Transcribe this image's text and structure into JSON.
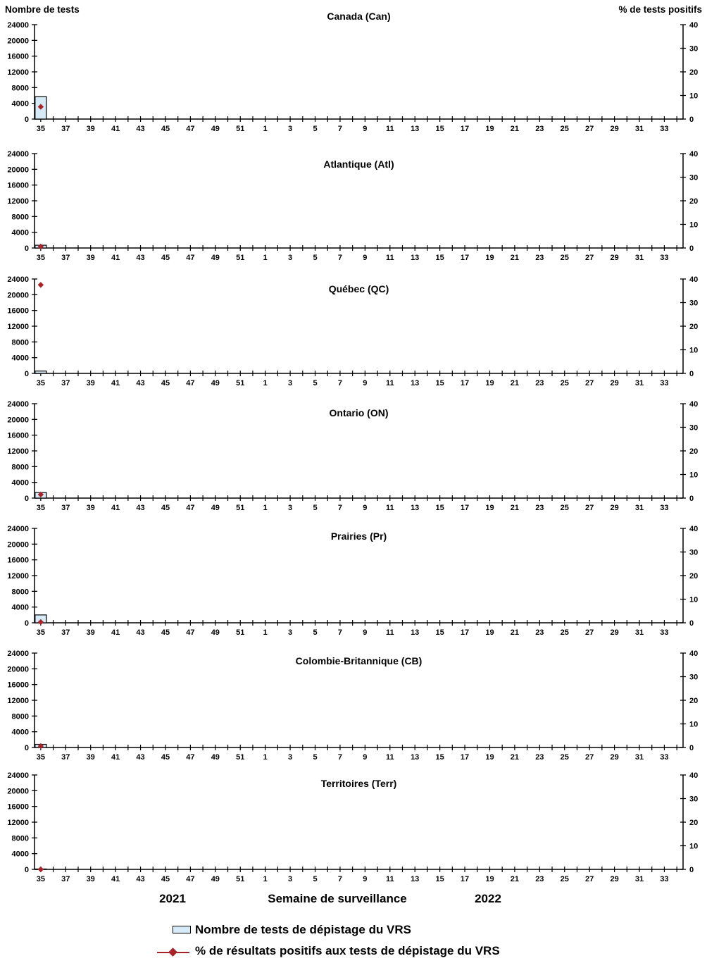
{
  "colors": {
    "bar_fill": "#D6EAF8",
    "bar_border": "#000000",
    "marker": "#A6252B",
    "axis": "#000000"
  },
  "legend": {
    "tests_label": "Nombre de tests de dépistage du VRS",
    "pct_label": "% de résultats positifs aux tests de dépistage du VRS"
  },
  "chart_data": {
    "type": "bar+scatter small multiples (combo: tests bars on left axis, % positive markers on right axis)",
    "axes": {
      "left": {
        "label": "Nombre de tests",
        "min": 0,
        "max": 24000,
        "step": 4000
      },
      "right": {
        "label": "% de tests positifs",
        "min": 0,
        "max": 40,
        "step": 10
      },
      "x": {
        "title": "Semaine de surveillance",
        "year1": {
          "label": "2021",
          "start": 35,
          "end": 52
        },
        "year2": {
          "label": "2022",
          "start": 1,
          "end": 34
        },
        "tick_labels": [
          35,
          37,
          39,
          41,
          43,
          45,
          47,
          49,
          51,
          1,
          3,
          5,
          7,
          9,
          11,
          13,
          15,
          17,
          19,
          21,
          23,
          25,
          27,
          29,
          31,
          33
        ]
      }
    },
    "panels": [
      {
        "title": "Canada (Can)",
        "data_week": 35,
        "tests": 5700,
        "pct_positive": 5.2
      },
      {
        "title": "Atlantique (Atl)",
        "data_week": 35,
        "tests": 700,
        "pct_positive": 0.6
      },
      {
        "title": "Québec (QC)",
        "data_week": 35,
        "tests": 600,
        "pct_positive": 37.5
      },
      {
        "title": "Ontario (ON)",
        "data_week": 35,
        "tests": 1400,
        "pct_positive": 1.5
      },
      {
        "title": "Prairies (Pr)",
        "data_week": 35,
        "tests": 2000,
        "pct_positive": 0.3
      },
      {
        "title": "Colombie-Britannique (CB)",
        "data_week": 35,
        "tests": 800,
        "pct_positive": 0.6
      },
      {
        "title": "Territoires (Terr)",
        "data_week": 35,
        "tests": 100,
        "pct_positive": 0
      }
    ],
    "legend_position": "bottom-left",
    "grid": false
  }
}
